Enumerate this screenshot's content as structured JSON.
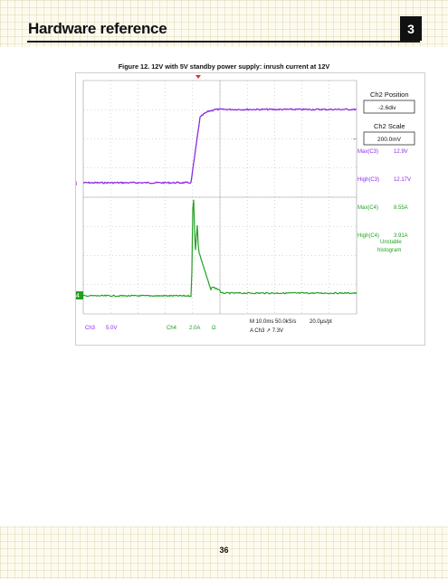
{
  "header": {
    "chapter_title": "Hardware reference",
    "chapter_number": "3"
  },
  "figure": {
    "caption": "Figure 12. 12V with 5V standby power supply: inrush current at 12V"
  },
  "scope": {
    "ch2_position_label": "Ch2 Position",
    "ch2_position_value": "-2.6div",
    "ch2_scale_label": "Ch2 Scale",
    "ch2_scale_value": "200.0mV",
    "measurements": [
      {
        "label": "Max(C3)",
        "value": "12.9V",
        "color": "#8a2be2"
      },
      {
        "label": "High(C3)",
        "value": "12.17V",
        "color": "#8a2be2"
      },
      {
        "label": "Max(C4)",
        "value": "8.55A",
        "color": "#22a022"
      },
      {
        "label": "High(C4)",
        "value": "3.91A",
        "color": "#22a022"
      }
    ],
    "unstable_line1": "Unstable",
    "unstable_line2": "histogram",
    "bottom_ch3": "Ch3",
    "bottom_ch3_scale": "5.0V",
    "bottom_ch4": "Ch4",
    "bottom_ch4_scale": "2.0A",
    "bottom_ohm": "Ω",
    "timebase": "M 10.0ms 50.0kS/s",
    "per_pt": "20.0µs/pt",
    "trigger": "A  Ch3  ↗  7.3V",
    "ch3_marker": "3",
    "ch4_marker": "4",
    "colors": {
      "ch3": "#8a2be2",
      "ch4": "#22a022",
      "grid": "#9a9a9a",
      "trigger_marker": "#e0302a"
    }
  },
  "footer": {
    "page_number": "36"
  }
}
